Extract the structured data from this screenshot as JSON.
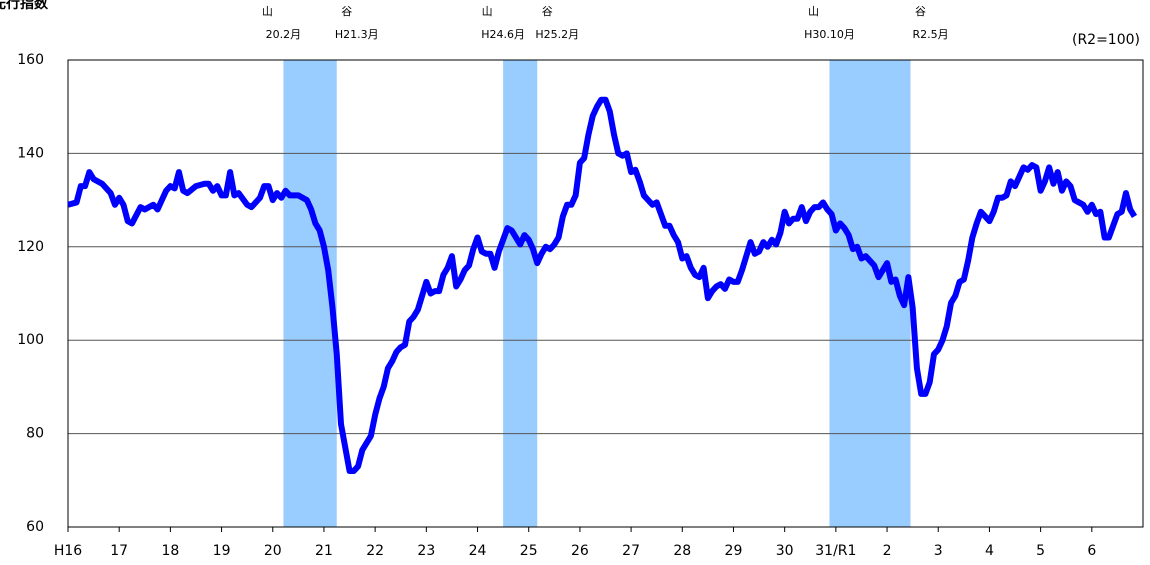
{
  "chart_data": {
    "type": "line",
    "title": "先行指数",
    "unit_label": "(R2=100)",
    "color": "#0000ff",
    "shade_color": "#99ccff",
    "grid": true,
    "xlim": [
      0,
      252
    ],
    "ylim": [
      60,
      160
    ],
    "yticks": [
      60,
      80,
      100,
      120,
      140,
      160
    ],
    "xticks": [
      {
        "value": 0,
        "label": "H16"
      },
      {
        "value": 12,
        "label": "17"
      },
      {
        "value": 24,
        "label": "18"
      },
      {
        "value": 36,
        "label": "19"
      },
      {
        "value": 48,
        "label": "20"
      },
      {
        "value": 60,
        "label": "21"
      },
      {
        "value": 72,
        "label": "22"
      },
      {
        "value": 84,
        "label": "23"
      },
      {
        "value": 96,
        "label": "24"
      },
      {
        "value": 108,
        "label": "25"
      },
      {
        "value": 120,
        "label": "26"
      },
      {
        "value": 132,
        "label": "27"
      },
      {
        "value": 144,
        "label": "28"
      },
      {
        "value": 156,
        "label": "29"
      },
      {
        "value": 168,
        "label": "30"
      },
      {
        "value": 180,
        "label": "31/R1"
      },
      {
        "value": 192,
        "label": "2"
      },
      {
        "value": 204,
        "label": "3"
      },
      {
        "value": 216,
        "label": "4"
      },
      {
        "value": 228,
        "label": "5"
      },
      {
        "value": 240,
        "label": "6"
      }
    ],
    "shading": [
      {
        "start": 50.5,
        "end": 63,
        "peak_mark": "山",
        "peak": "20.2月",
        "trough_mark": "谷",
        "trough": "H21.3月"
      },
      {
        "start": 102,
        "end": 110,
        "peak_mark": "山",
        "peak": "H24.6月",
        "trough_mark": "谷",
        "trough": "H25.2月"
      },
      {
        "start": 178.5,
        "end": 197.5,
        "peak_mark": "山",
        "peak": "H30.10月",
        "trough_mark": "谷",
        "trough": "R2.5月"
      }
    ],
    "x": [
      0,
      2,
      3,
      4,
      5,
      6,
      8,
      10,
      11,
      12,
      13,
      14,
      15,
      17,
      18,
      20,
      21,
      23,
      24,
      25,
      26,
      27,
      28,
      30,
      32,
      33,
      34,
      35,
      36,
      37,
      38,
      39,
      40,
      42,
      43,
      45,
      46,
      47,
      48,
      49,
      50,
      51,
      52,
      53,
      54,
      55,
      56,
      57,
      58,
      59,
      60,
      61,
      62,
      63,
      64,
      65,
      66,
      67,
      68,
      69,
      70,
      71,
      72,
      73,
      74,
      75,
      76,
      77,
      78,
      79,
      80,
      81,
      82,
      83,
      84,
      85,
      86,
      87,
      88,
      89,
      90,
      91,
      92,
      93,
      94,
      95,
      96,
      97,
      98,
      99,
      100,
      101,
      102,
      103,
      104,
      105,
      106,
      107,
      108,
      109,
      110,
      111,
      112,
      113,
      114,
      115,
      116,
      117,
      118,
      119,
      120,
      121,
      122,
      123,
      124,
      125,
      126,
      127,
      128,
      129,
      130,
      131,
      132,
      133,
      134,
      135,
      136,
      137,
      138,
      139,
      140,
      141,
      142,
      143,
      144,
      145,
      146,
      147,
      148,
      149,
      150,
      151,
      152,
      153,
      154,
      155,
      156,
      157,
      158,
      159,
      160,
      161,
      162,
      163,
      164,
      165,
      166,
      167,
      168,
      169,
      170,
      171,
      172,
      173,
      174,
      175,
      176,
      177,
      178,
      179,
      180,
      181,
      182,
      183,
      184,
      185,
      186,
      187,
      188,
      189,
      190,
      191,
      192,
      193,
      194,
      195,
      196,
      197,
      198,
      199,
      200,
      201,
      202,
      203,
      204,
      205,
      206,
      207,
      208,
      209,
      210,
      211,
      212,
      213,
      214,
      215,
      216,
      217,
      218,
      219,
      220,
      221,
      222,
      223,
      224,
      225,
      226,
      227,
      228,
      229,
      230,
      231,
      232,
      233,
      234,
      235,
      236,
      237,
      238,
      239,
      240,
      241,
      242,
      243,
      244,
      245,
      246,
      247,
      248,
      249,
      250
    ],
    "values": [
      129,
      129.5,
      133,
      133,
      136,
      134.5,
      133.5,
      131.5,
      129,
      130.5,
      129,
      125.5,
      125,
      128.5,
      128,
      129,
      128,
      132,
      133,
      132.5,
      136,
      132,
      131.5,
      133,
      133.5,
      133.5,
      132,
      133,
      131,
      131,
      136,
      131,
      131.5,
      129,
      128.5,
      130.5,
      133,
      133,
      130,
      131.5,
      130.5,
      132,
      131,
      131,
      131,
      130.5,
      130,
      128,
      125,
      123.5,
      120,
      115,
      107,
      97,
      82,
      77,
      72,
      72,
      73,
      76.5,
      78,
      79.5,
      84,
      87.5,
      90,
      94,
      95.5,
      97.5,
      98.5,
      99,
      104,
      105,
      106.5,
      109.5,
      112.5,
      110,
      110.5,
      110.5,
      114,
      115.5,
      118,
      111.5,
      113,
      115,
      116,
      119.5,
      122,
      119,
      118.5,
      118.5,
      115.5,
      119,
      121.5,
      124,
      123.5,
      122,
      120.5,
      122.5,
      121.5,
      119.5,
      116.5,
      118.5,
      120,
      119.5,
      120.5,
      122,
      126.5,
      129,
      129,
      131,
      138,
      139,
      144,
      148,
      150,
      151.5,
      151.5,
      149,
      144,
      140,
      139.5,
      140,
      136,
      136.5,
      134,
      131,
      130,
      129,
      129.5,
      127,
      124.5,
      124.5,
      122.5,
      121,
      117.5,
      118,
      115.5,
      114,
      113.5,
      115.5,
      109,
      110.5,
      111.5,
      112,
      111,
      113,
      112.5,
      112.5,
      115,
      118,
      121,
      118.5,
      119,
      121,
      120,
      121.5,
      120.5,
      123,
      127.5,
      125,
      126,
      126,
      128.5,
      125.5,
      127.5,
      128.5,
      128.5,
      129.5,
      128,
      127,
      123.5,
      125,
      124,
      122.5,
      119.5,
      120,
      117.5,
      118,
      117,
      116,
      113.5,
      115,
      116.5,
      112.5,
      113,
      109.5,
      107.5,
      113.5,
      107,
      94,
      88.5,
      88.5,
      91,
      97,
      98,
      100,
      103,
      108,
      109.5,
      112.5,
      113,
      117,
      122,
      125,
      127.5,
      126.5,
      125.5,
      127.5,
      130.5,
      130.5,
      131,
      134,
      133,
      135,
      137,
      136.5,
      137.5,
      137,
      132,
      134,
      137,
      133.5,
      136,
      132,
      134,
      133,
      130,
      129.5,
      129,
      127.5,
      129,
      127,
      127.5,
      122,
      122,
      124.5,
      127,
      127.5,
      131.5,
      128,
      126.5
    ]
  }
}
